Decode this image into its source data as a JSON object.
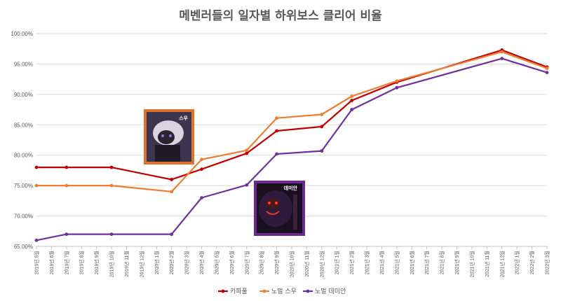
{
  "chart_data": {
    "type": "line",
    "title": "메벤러들의 일자별 하위보스 클리어 비율",
    "xlabel": "",
    "ylabel": "",
    "ylim": [
      65,
      100
    ],
    "y_tick_labels": [
      "65.00%",
      "70.00%",
      "75.00%",
      "80.00%",
      "85.00%",
      "90.00%",
      "95.00%",
      "100.00%"
    ],
    "grid": true,
    "legend_position": "bottom",
    "categories": [
      "2019년 5월",
      "2019년 6월",
      "2019년 7월",
      "2019년 8월",
      "2019년 9월",
      "2019년 10월",
      "2019년 11월",
      "2019년 12월",
      "2020년 1월",
      "2020년 2월",
      "2020년 3월",
      "2020년 4월",
      "2020년 5월",
      "2020년 6월",
      "2020년 7월",
      "2020년 8월",
      "2020년 9월",
      "2020년 10월",
      "2020년 11월",
      "2020년 12월",
      "2021년 1월",
      "2021년 2월",
      "2021년 3월",
      "2021년 4월",
      "2021년 5월",
      "2021년 6월",
      "2021년 7월",
      "2021년 8월",
      "2021년 9월",
      "2021년 10월",
      "2021년 11월",
      "2021년 12월",
      "2022년 1월",
      "2022년 2월",
      "2022년 3월"
    ],
    "x_tick_labels": [
      "2019년 5월",
      "2019년 6월",
      "2019년 7월",
      "2019년 8월",
      "2019년 9월",
      "2019년 10월",
      "2019년 11월",
      "2019년 12월",
      "2020년 1월",
      "2020년 2월",
      "2020년 3월",
      "2020년 4월",
      "2020년 5월",
      "2020년 6월",
      "2020년 7월",
      "2020년 8월",
      "2020년 9월",
      "2020년 10월",
      "2020년 11월",
      "2020년 12월",
      "2021년 1월",
      "2021년 2월",
      "2021년 3월",
      "2021년 4월",
      "2021년 5월",
      "2021년 6월",
      "2021년 7월",
      "2021년 8월",
      "2021년 9월",
      "2021년 10월",
      "2021년 11월",
      "2021년 12월",
      "2022년 1월",
      "2022년 2월",
      "2022년 3월"
    ],
    "series": [
      {
        "name": "카파풀",
        "color": "#c00000",
        "points": [
          [
            0,
            78
          ],
          [
            2,
            78
          ],
          [
            5,
            78
          ],
          [
            9,
            76
          ],
          [
            11,
            77.7
          ],
          [
            14,
            80.3
          ],
          [
            16,
            84
          ],
          [
            19,
            84.7
          ],
          [
            21,
            89
          ],
          [
            24,
            92
          ],
          [
            31,
            97.3
          ],
          [
            34,
            94.5
          ]
        ]
      },
      {
        "name": "노멀 스우",
        "color": "#ed7d31",
        "points": [
          [
            0,
            75
          ],
          [
            2,
            75
          ],
          [
            5,
            75
          ],
          [
            9,
            74
          ],
          [
            11,
            79.3
          ],
          [
            14,
            80.8
          ],
          [
            16,
            86.1
          ],
          [
            19,
            86.7
          ],
          [
            21,
            89.7
          ],
          [
            24,
            92.2
          ],
          [
            31,
            97
          ],
          [
            34,
            94.3
          ]
        ]
      },
      {
        "name": "노멀 데미안",
        "color": "#7030a0",
        "points": [
          [
            0,
            66
          ],
          [
            2,
            67
          ],
          [
            5,
            67
          ],
          [
            9,
            67
          ],
          [
            11,
            73
          ],
          [
            14,
            75.1
          ],
          [
            16,
            80.2
          ],
          [
            19,
            80.7
          ],
          [
            21,
            87.5
          ],
          [
            24,
            91.1
          ],
          [
            31,
            95.9
          ],
          [
            34,
            93.6
          ]
        ]
      }
    ],
    "annotations": [
      {
        "label": "스우",
        "icon": "boss-lucid-portrait-icon"
      },
      {
        "label": "데미안",
        "icon": "boss-damien-portrait-icon"
      }
    ]
  }
}
